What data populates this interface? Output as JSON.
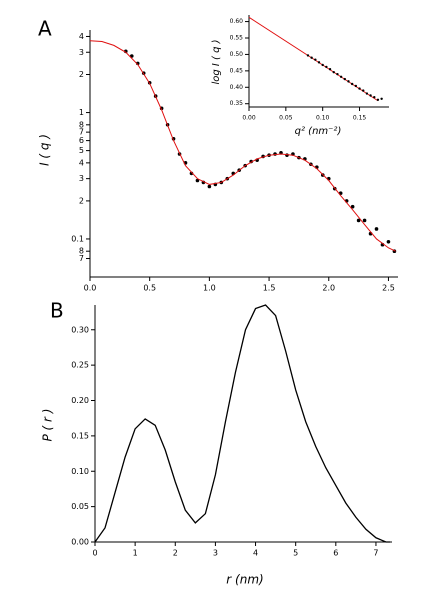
{
  "chart_data": [
    {
      "type": "scatter",
      "label": "A",
      "ylabel": "I ( q )",
      "ylog": true,
      "xlim": [
        0,
        2.58
      ],
      "ylim": [
        0.05,
        4.5
      ],
      "xticks": [
        {
          "value": 0,
          "label": "0.0"
        },
        0.5,
        {
          "value": 1,
          "label": "1.0"
        },
        1.5,
        {
          "value": 2,
          "label": "2.0"
        },
        2.5
      ],
      "yticks": [
        4,
        3,
        2,
        1,
        {
          "value": 0.8,
          "label": "8"
        },
        {
          "value": 0.7,
          "label": "7"
        },
        {
          "value": 0.6,
          "label": "6"
        },
        {
          "value": 0.5,
          "label": "5"
        },
        {
          "value": 0.4,
          "label": "4"
        },
        {
          "value": 0.3,
          "label": "3"
        },
        {
          "value": 0.2,
          "label": "2"
        },
        0.1,
        {
          "value": 0.08,
          "label": "8"
        },
        {
          "value": 0.07,
          "label": "7"
        }
      ],
      "series": [
        {
          "type": "scatter",
          "color": "#000000",
          "x": [
            0.3,
            0.35,
            0.4,
            0.45,
            0.5,
            0.55,
            0.6,
            0.65,
            0.7,
            0.75,
            0.8,
            0.85,
            0.9,
            0.95,
            1.0,
            1.05,
            1.1,
            1.15,
            1.2,
            1.25,
            1.3,
            1.35,
            1.4,
            1.45,
            1.5,
            1.55,
            1.6,
            1.65,
            1.7,
            1.75,
            1.8,
            1.85,
            1.9,
            1.95,
            2.0,
            2.05,
            2.1,
            2.15,
            2.2,
            2.25,
            2.3,
            2.35,
            2.4,
            2.45,
            2.5,
            2.55
          ],
          "values": [
            3.05,
            2.8,
            2.45,
            2.05,
            1.72,
            1.35,
            1.08,
            0.8,
            0.62,
            0.47,
            0.4,
            0.33,
            0.29,
            0.28,
            0.26,
            0.27,
            0.28,
            0.3,
            0.33,
            0.35,
            0.38,
            0.41,
            0.42,
            0.45,
            0.46,
            0.47,
            0.48,
            0.46,
            0.47,
            0.44,
            0.43,
            0.39,
            0.37,
            0.32,
            0.3,
            0.25,
            0.23,
            0.2,
            0.18,
            0.14,
            0.14,
            0.11,
            0.12,
            0.09,
            0.095,
            0.08
          ]
        },
        {
          "type": "line",
          "color": "#e01010",
          "x": [
            0,
            0.1,
            0.2,
            0.3,
            0.4,
            0.5,
            0.6,
            0.7,
            0.8,
            0.9,
            1.0,
            1.1,
            1.2,
            1.3,
            1.4,
            1.5,
            1.6,
            1.7,
            1.8,
            1.9,
            2.0,
            2.1,
            2.2,
            2.3,
            2.4,
            2.5,
            2.56
          ],
          "values": [
            3.7,
            3.65,
            3.4,
            3.0,
            2.4,
            1.7,
            1.05,
            0.6,
            0.38,
            0.3,
            0.27,
            0.28,
            0.32,
            0.38,
            0.43,
            0.46,
            0.47,
            0.46,
            0.42,
            0.36,
            0.29,
            0.22,
            0.17,
            0.13,
            0.1,
            0.085,
            0.08
          ]
        }
      ]
    },
    {
      "type": "scatter",
      "xlabel": "q² (nm⁻²)",
      "ylabel": "log I ( q )",
      "xlim": [
        0,
        0.19
      ],
      "ylim": [
        0.34,
        0.62
      ],
      "xticks": [
        {
          "value": 0,
          "label": "0.00"
        },
        0.05,
        {
          "value": 0.1,
          "label": "0.10"
        },
        0.15
      ],
      "yticks": [
        {
          "value": 0.6,
          "label": "0.60"
        },
        0.55,
        {
          "value": 0.5,
          "label": "0.50"
        },
        0.45,
        {
          "value": 0.4,
          "label": "0.40"
        },
        0.35
      ],
      "series": [
        {
          "type": "line",
          "color": "#e01010",
          "x": [
            0,
            0.175
          ],
          "values": [
            0.613,
            0.359
          ]
        },
        {
          "type": "scatter",
          "color": "#000000",
          "x": [
            0.08,
            0.085,
            0.09,
            0.095,
            0.1,
            0.105,
            0.11,
            0.115,
            0.12,
            0.125,
            0.13,
            0.135,
            0.14,
            0.145,
            0.15,
            0.155,
            0.16,
            0.165,
            0.17,
            0.175,
            0.18
          ],
          "values": [
            0.497,
            0.49,
            0.484,
            0.476,
            0.468,
            0.462,
            0.455,
            0.446,
            0.44,
            0.432,
            0.425,
            0.418,
            0.41,
            0.404,
            0.396,
            0.39,
            0.381,
            0.375,
            0.37,
            0.362,
            0.365
          ]
        }
      ]
    },
    {
      "type": "line",
      "label": "B",
      "xlabel": "r (nm)",
      "ylabel": "P ( r )",
      "xlim": [
        0,
        7.4
      ],
      "ylim": [
        0,
        0.335
      ],
      "xticks": [
        0,
        1,
        2,
        3,
        4,
        5,
        6,
        7
      ],
      "yticks": [
        {
          "value": 0,
          "label": "0.00"
        },
        0.05,
        {
          "value": 0.1,
          "label": "0.10"
        },
        0.15,
        {
          "value": 0.2,
          "label": "0.20"
        },
        0.25,
        {
          "value": 0.3,
          "label": "0.30"
        }
      ],
      "series": [
        {
          "type": "line",
          "color": "#000000",
          "x": [
            0,
            0.25,
            0.5,
            0.75,
            1.0,
            1.25,
            1.5,
            1.75,
            2.0,
            2.25,
            2.5,
            2.75,
            3.0,
            3.25,
            3.5,
            3.75,
            4.0,
            4.25,
            4.5,
            4.75,
            5.0,
            5.25,
            5.5,
            5.75,
            6.0,
            6.25,
            6.5,
            6.75,
            7.0,
            7.25,
            7.35
          ],
          "values": [
            0,
            0.02,
            0.07,
            0.12,
            0.16,
            0.174,
            0.165,
            0.13,
            0.085,
            0.045,
            0.027,
            0.04,
            0.095,
            0.17,
            0.24,
            0.3,
            0.33,
            0.335,
            0.32,
            0.27,
            0.215,
            0.17,
            0.135,
            0.105,
            0.08,
            0.055,
            0.035,
            0.018,
            0.006,
            0,
            0
          ]
        }
      ]
    }
  ]
}
